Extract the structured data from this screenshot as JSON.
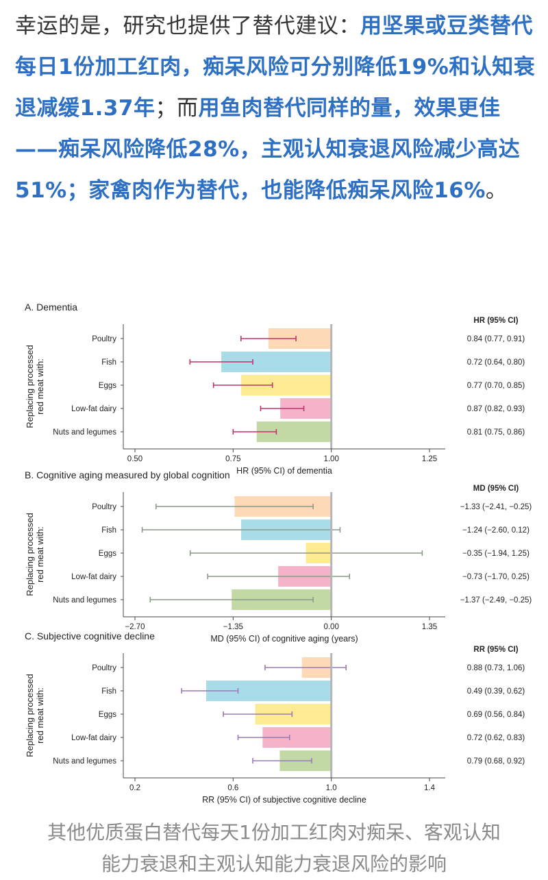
{
  "article": {
    "segments": [
      {
        "text": "幸运的是，研究也提供了替代建议：",
        "highlight": false
      },
      {
        "text": "用坚果或豆类替代每日1份加工红肉，痴呆风险可分别降低19%和认知衰退减缓1.37年",
        "highlight": true
      },
      {
        "text": "；而",
        "highlight": false
      },
      {
        "text": "用鱼肉替代同样的量，效果更佳——痴呆风险降低28%，主观认知衰退风险减少高达51%；家禽肉作为替代，也能降低痴呆风险16%",
        "highlight": true
      },
      {
        "text": "。",
        "highlight": false
      }
    ]
  },
  "figure": {
    "y_group_label": [
      "Replacing processed",
      "red meat with:"
    ],
    "colors": {
      "Poultry": "#fdd9b5",
      "Fish": "#a8dce8",
      "Eggs": "#fdeb94",
      "Low-fat dairy": "#f6b2c9",
      "Nuts and legumes": "#c2d9a6",
      "ci_dementia": "#c0326a",
      "ci_cognition": "#8a9a8a",
      "ci_subjective": "#9a7ab8",
      "reference_line": "#b5b5b5"
    }
  },
  "chart_data": [
    {
      "type": "bar",
      "title": "A. Dementia",
      "xlabel": "HR (95% CI) of dementia",
      "stat_header": "HR (95% CI)",
      "categories": [
        "Poultry",
        "Fish",
        "Eggs",
        "Low-fat dairy",
        "Nuts and legumes"
      ],
      "values": [
        0.84,
        0.72,
        0.77,
        0.87,
        0.81
      ],
      "ci_low": [
        0.77,
        0.64,
        0.7,
        0.82,
        0.75
      ],
      "ci_high": [
        0.91,
        0.8,
        0.85,
        0.93,
        0.86
      ],
      "stat_labels": [
        "0.84 (0.77, 0.91)",
        "0.72 (0.64, 0.80)",
        "0.77 (0.70, 0.85)",
        "0.87 (0.82, 0.93)",
        "0.81 (0.75, 0.86)"
      ],
      "reference": 1.0,
      "xlim": [
        0.5,
        1.25
      ],
      "xticks": [
        0.5,
        0.75,
        1.0,
        1.25
      ],
      "xtick_labels": [
        "0.50",
        "0.75",
        "1.00",
        "1.25"
      ]
    },
    {
      "type": "bar",
      "title": "B. Cognitive aging measured by global cognition",
      "xlabel": "MD (95% CI) of cognitive aging (years)",
      "stat_header": "MD (95% CI)",
      "categories": [
        "Poultry",
        "Fish",
        "Eggs",
        "Low-fat dairy",
        "Nuts and legumes"
      ],
      "values": [
        -1.33,
        -1.24,
        -0.35,
        -0.73,
        -1.37
      ],
      "ci_low": [
        -2.41,
        -2.6,
        -1.94,
        -1.7,
        -2.49
      ],
      "ci_high": [
        -0.25,
        0.12,
        1.25,
        0.25,
        -0.25
      ],
      "stat_labels": [
        "−1.33 (−2.41, −0.25)",
        "−1.24 (−2.60, 0.12)",
        "−0.35 (−1.94, 1.25)",
        "−0.73 (−1.70, 0.25)",
        "−1.37 (−2.49, −0.25)"
      ],
      "reference": 0.0,
      "xlim": [
        -2.7,
        1.35
      ],
      "xticks": [
        -2.7,
        -1.35,
        0.0,
        1.35
      ],
      "xtick_labels": [
        "−2.70",
        "−1.35",
        "0.00",
        "1.35"
      ]
    },
    {
      "type": "bar",
      "title": "C. Subjective cognitive decline",
      "xlabel": "RR (95% CI) of subjective cognitive decline",
      "stat_header": "RR (95% CI)",
      "categories": [
        "Poultry",
        "Fish",
        "Eggs",
        "Low-fat dairy",
        "Nuts and legumes"
      ],
      "values": [
        0.88,
        0.49,
        0.69,
        0.72,
        0.79
      ],
      "ci_low": [
        0.73,
        0.39,
        0.56,
        0.62,
        0.68
      ],
      "ci_high": [
        1.06,
        0.62,
        0.84,
        0.83,
        0.92
      ],
      "stat_labels": [
        "0.88 (0.73, 1.06)",
        "0.49 (0.39, 0.62)",
        "0.69 (0.56, 0.84)",
        "0.72 (0.62, 0.83)",
        "0.79 (0.68, 0.92)"
      ],
      "reference": 1.0,
      "xlim": [
        0.2,
        1.4
      ],
      "xticks": [
        0.2,
        0.6,
        1.0,
        1.4
      ],
      "xtick_labels": [
        "0.2",
        "0.6",
        "1.0",
        "1.4"
      ]
    }
  ],
  "caption": {
    "line1": "其他优质蛋白替代每天1份加工红肉对痴呆、客观认知",
    "line2": "能力衰退和主观认知能力衰退风险的影响"
  }
}
